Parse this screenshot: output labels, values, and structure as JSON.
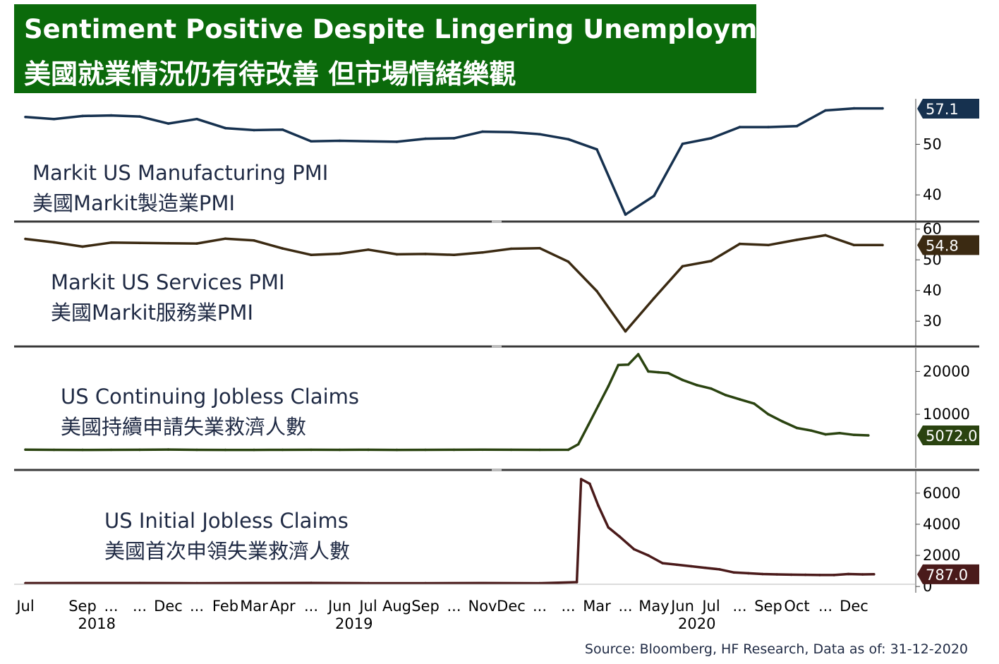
{
  "title": {
    "en": "Sentiment Positive Despite Lingering Unemployment",
    "zh": "美國就業情況仍有待改善 但市場情緒樂觀"
  },
  "source": "Source: Bloomberg, HF Research, Data as of: 31-12-2020",
  "colors": {
    "title_bg": "#0b6a0b"
  },
  "chart_data": [
    {
      "type": "line",
      "label_en": "Markit US Manufacturing PMI",
      "label_zh": "美國Markit製造業PMI",
      "color": "#16314f",
      "last_value": "57.1",
      "yticks": [
        {
          "v": 50,
          "t": "50"
        },
        {
          "v": 40,
          "t": "40"
        }
      ],
      "ylim": [
        35,
        59
      ],
      "x": [
        0,
        1,
        2,
        3,
        4,
        5,
        6,
        7,
        8,
        9,
        10,
        11,
        12,
        13,
        14,
        15,
        16,
        17,
        18,
        19,
        20,
        21,
        22,
        23,
        24,
        25,
        26,
        27,
        28,
        29,
        30
      ],
      "values": [
        55.4,
        55.0,
        55.6,
        55.7,
        55.5,
        54.1,
        55.0,
        53.2,
        52.8,
        52.9,
        50.6,
        50.7,
        50.6,
        50.5,
        51.1,
        51.2,
        52.5,
        52.4,
        52.0,
        51.0,
        49.0,
        36.1,
        39.8,
        50.1,
        51.2,
        53.4,
        53.4,
        53.6,
        56.7,
        57.1,
        57.1
      ]
    },
    {
      "type": "line",
      "label_en": "Markit US Services PMI",
      "label_zh": "美國Markit服務業PMI",
      "color": "#3b2a12",
      "last_value": "54.8",
      "yticks": [
        {
          "v": 60,
          "t": "60"
        },
        {
          "v": 50,
          "t": "50"
        },
        {
          "v": 40,
          "t": "40"
        },
        {
          "v": 30,
          "t": "30"
        }
      ],
      "ylim": [
        22,
        62
      ],
      "x": [
        0,
        1,
        2,
        3,
        4,
        5,
        6,
        7,
        8,
        9,
        10,
        11,
        12,
        13,
        14,
        15,
        16,
        17,
        18,
        19,
        20,
        21,
        22,
        23,
        24,
        25,
        26,
        27,
        28,
        29,
        30
      ],
      "values": [
        56.8,
        55.7,
        54.3,
        55.6,
        55.5,
        55.4,
        55.3,
        56.9,
        56.3,
        53.7,
        51.6,
        52.0,
        53.3,
        51.8,
        51.9,
        51.6,
        52.4,
        53.6,
        53.8,
        49.4,
        39.8,
        26.7,
        37.5,
        47.9,
        49.6,
        55.2,
        54.8,
        56.5,
        58.0,
        54.8,
        54.8
      ]
    },
    {
      "type": "line",
      "label_en": "US Continuing Jobless Claims",
      "label_zh": "美國持續申請失業救濟人數",
      "color": "#2a4310",
      "last_value": "5072.0",
      "yticks": [
        {
          "v": 20000,
          "t": "20000"
        },
        {
          "v": 10000,
          "t": "10000"
        }
      ],
      "ylim": [
        -2500,
        25500
      ],
      "x": [
        0,
        1,
        2,
        3,
        4,
        5,
        6,
        7,
        8,
        9,
        10,
        11,
        12,
        13,
        14,
        15,
        16,
        17,
        18,
        19,
        19.35,
        19.7,
        20.05,
        20.4,
        20.75,
        21.1,
        21.45,
        21.8,
        22.15,
        22.5,
        23.0,
        23.5,
        24.0,
        24.5,
        25.0,
        25.5,
        26.0,
        26.5,
        27.0,
        27.5,
        28.0,
        28.5,
        29.0,
        29.5
      ],
      "values": [
        1750,
        1700,
        1690,
        1700,
        1720,
        1760,
        1700,
        1690,
        1680,
        1700,
        1710,
        1700,
        1720,
        1680,
        1700,
        1720,
        1740,
        1720,
        1700,
        1720,
        3000,
        7500,
        12000,
        16500,
        21500,
        21600,
        24000,
        20000,
        19800,
        19600,
        18000,
        16800,
        16000,
        14500,
        13500,
        12500,
        10000,
        8300,
        6800,
        6200,
        5300,
        5600,
        5200,
        5072
      ]
    },
    {
      "type": "line",
      "label_en": "US Initial Jobless Claims",
      "label_zh": "美國首次申領失業救濟人數",
      "color": "#4a1a1a",
      "last_value": "787.0",
      "yticks": [
        {
          "v": 6000,
          "t": "6000"
        },
        {
          "v": 4000,
          "t": "4000"
        },
        {
          "v": 2000,
          "t": "2000"
        },
        {
          "v": 0,
          "t": "0"
        }
      ],
      "ylim": [
        -400,
        7400
      ],
      "x": [
        0,
        2,
        4,
        6,
        8,
        10,
        12,
        14,
        16,
        18,
        19.3,
        19.45,
        19.75,
        20.05,
        20.4,
        20.8,
        21.3,
        21.8,
        22.3,
        22.8,
        23.3,
        23.8,
        24.3,
        24.8,
        25.3,
        25.8,
        26.3,
        26.8,
        27.3,
        27.8,
        28.3,
        28.8,
        29.3,
        29.7
      ],
      "values": [
        215,
        220,
        225,
        210,
        220,
        230,
        210,
        210,
        220,
        210,
        280,
        6900,
        6600,
        5200,
        3800,
        3200,
        2400,
        2000,
        1500,
        1400,
        1300,
        1200,
        1100,
        900,
        850,
        800,
        780,
        760,
        750,
        740,
        740,
        800,
        780,
        787
      ]
    }
  ],
  "x_axis": {
    "labels": [
      {
        "i": 0,
        "t": "Jul"
      },
      {
        "i": 2,
        "t": "Sep"
      },
      {
        "i": 3,
        "t": "..."
      },
      {
        "i": 4,
        "t": "..."
      },
      {
        "i": 5,
        "t": "Dec"
      },
      {
        "i": 6,
        "t": "..."
      },
      {
        "i": 7,
        "t": "Feb"
      },
      {
        "i": 8,
        "t": "Mar"
      },
      {
        "i": 9,
        "t": "Apr"
      },
      {
        "i": 10,
        "t": "..."
      },
      {
        "i": 11,
        "t": "Jun"
      },
      {
        "i": 12,
        "t": "Jul"
      },
      {
        "i": 13,
        "t": "Aug"
      },
      {
        "i": 14,
        "t": "Sep"
      },
      {
        "i": 15,
        "t": "..."
      },
      {
        "i": 16,
        "t": "Nov"
      },
      {
        "i": 17,
        "t": "Dec"
      },
      {
        "i": 18,
        "t": "..."
      },
      {
        "i": 19,
        "t": "..."
      },
      {
        "i": 20,
        "t": "Mar"
      },
      {
        "i": 21,
        "t": "..."
      },
      {
        "i": 22,
        "t": "May"
      },
      {
        "i": 23,
        "t": "Jun"
      },
      {
        "i": 24,
        "t": "Jul"
      },
      {
        "i": 25,
        "t": "..."
      },
      {
        "i": 26,
        "t": "Sep"
      },
      {
        "i": 27,
        "t": "Oct"
      },
      {
        "i": 28,
        "t": "..."
      },
      {
        "i": 29,
        "t": "Dec"
      }
    ],
    "years": [
      {
        "i": 2.5,
        "t": "2018"
      },
      {
        "i": 11.5,
        "t": "2019"
      },
      {
        "i": 23.5,
        "t": "2020"
      }
    ]
  }
}
